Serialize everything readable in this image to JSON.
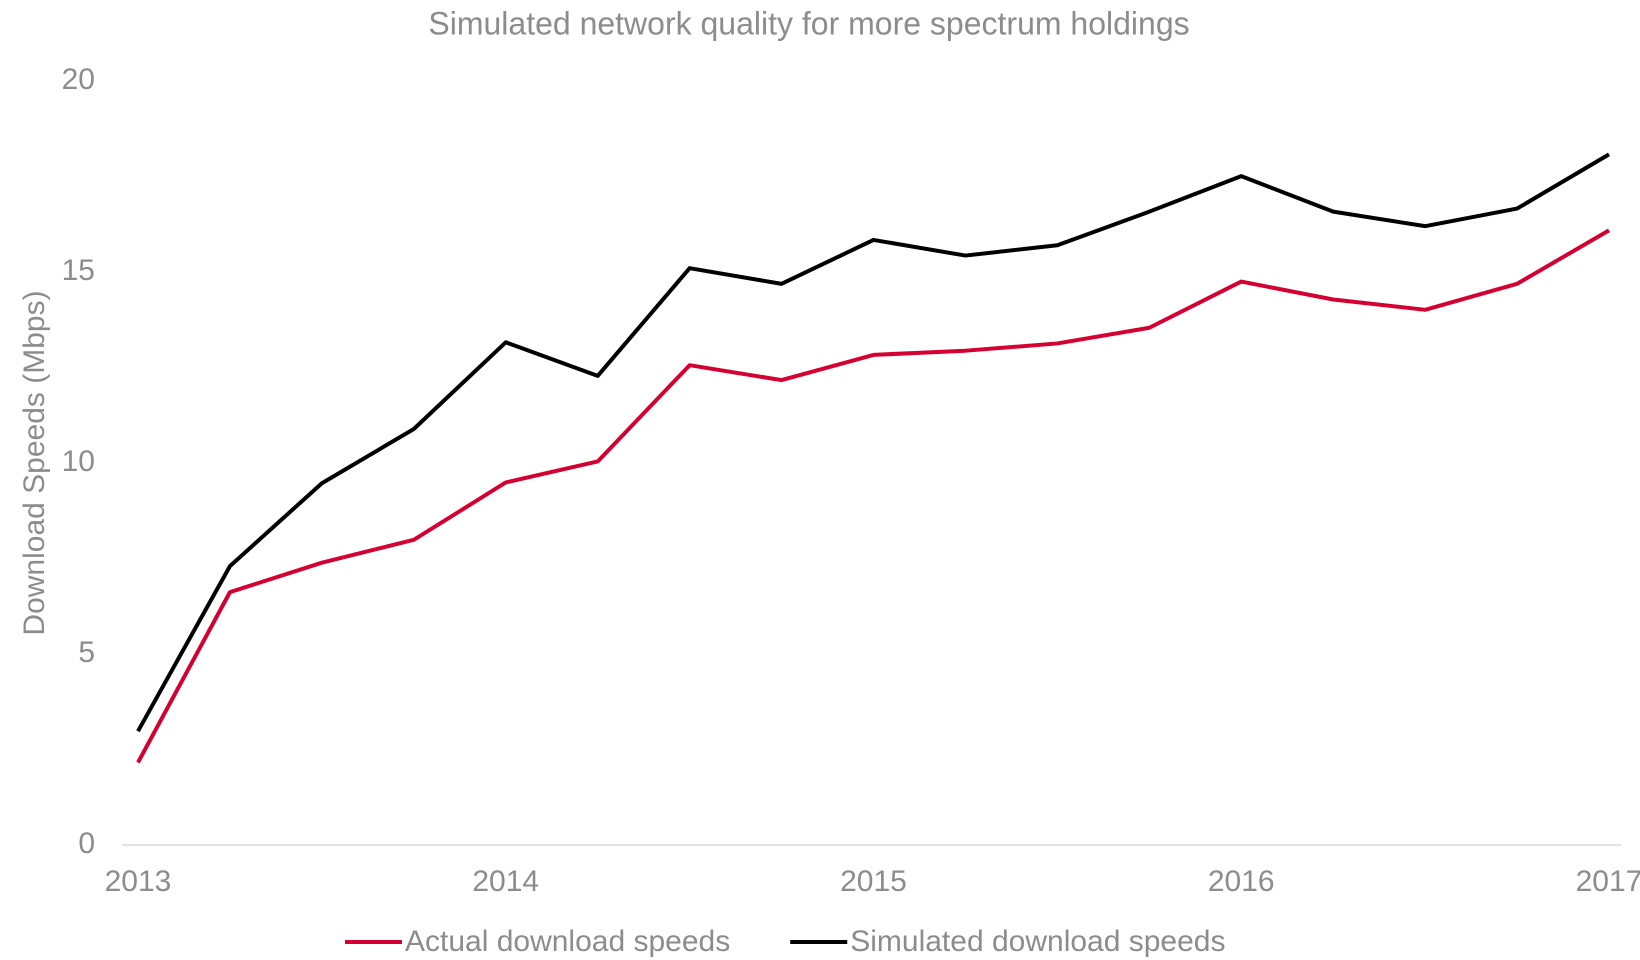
{
  "chart_data": {
    "type": "line",
    "title": "Simulated network quality for more spectrum holdings",
    "y_label": "Download Speeds (Mbps)",
    "categories": [
      "2013",
      null,
      null,
      null,
      "2014",
      null,
      null,
      null,
      "2015",
      null,
      null,
      null,
      "2016",
      null,
      null,
      null,
      "2017"
    ],
    "series": [
      {
        "name": "Actual download speeds",
        "color": "#d50032",
        "values": [
          2.16,
          6.62,
          7.39,
          7.99,
          9.49,
          10.04,
          12.56,
          12.17,
          12.83,
          12.94,
          13.13,
          13.54,
          14.75,
          14.28,
          14.01,
          14.69,
          16.09
        ]
      },
      {
        "name": "Simulated download speeds",
        "color": "#000000",
        "values": [
          2.98,
          7.3,
          9.47,
          10.89,
          13.16,
          12.28,
          15.1,
          14.69,
          15.84,
          15.43,
          15.7,
          16.58,
          17.51,
          16.58,
          16.2,
          16.66,
          18.08
        ]
      }
    ],
    "ylim": [
      0,
      20
    ],
    "yticks": [
      0,
      5,
      10,
      15,
      20
    ],
    "grid": false,
    "legend": "bottom"
  }
}
